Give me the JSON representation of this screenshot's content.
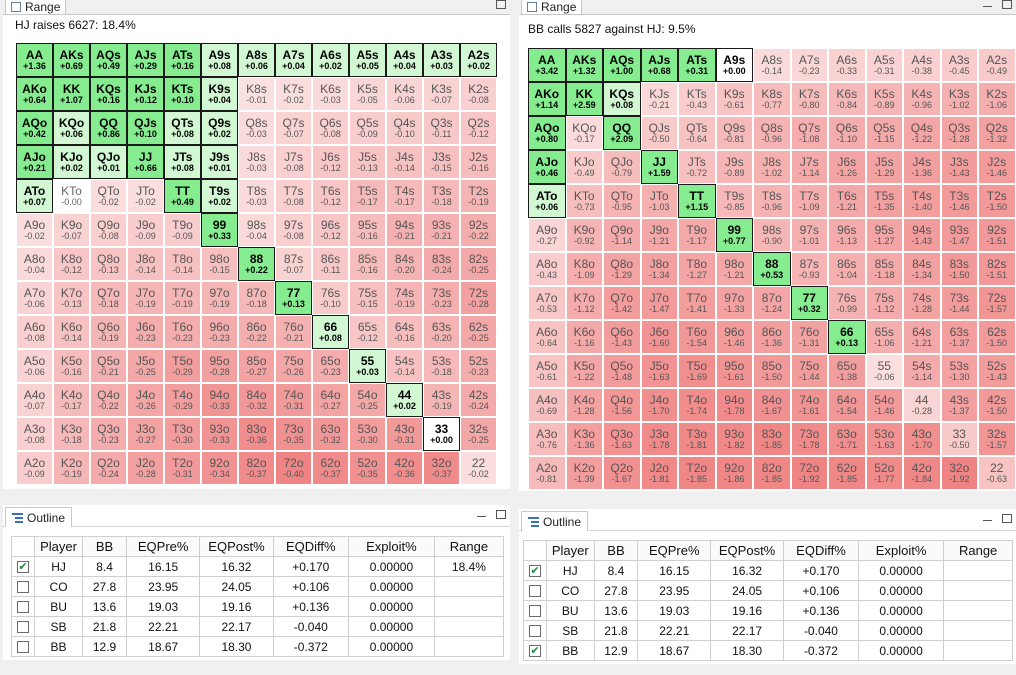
{
  "tab_labels": {
    "range": "Range",
    "outline": "Outline"
  },
  "left": {
    "caption": "HJ raises 6627: 18.4%",
    "cells": [
      [
        "AA",
        "+1.36"
      ],
      [
        "AKs",
        "+0.69"
      ],
      [
        "AQs",
        "+0.49"
      ],
      [
        "AJs",
        "+0.29"
      ],
      [
        "ATs",
        "+0.16"
      ],
      [
        "A9s",
        "+0.08"
      ],
      [
        "A8s",
        "+0.06"
      ],
      [
        "A7s",
        "+0.04"
      ],
      [
        "A6s",
        "+0.02"
      ],
      [
        "A5s",
        "+0.05"
      ],
      [
        "A4s",
        "+0.04"
      ],
      [
        "A3s",
        "+0.03"
      ],
      [
        "A2s",
        "+0.02"
      ],
      [
        "AKo",
        "+0.64"
      ],
      [
        "KK",
        "+1.07"
      ],
      [
        "KQs",
        "+0.16"
      ],
      [
        "KJs",
        "+0.12"
      ],
      [
        "KTs",
        "+0.10"
      ],
      [
        "K9s",
        "+0.04"
      ],
      [
        "K8s",
        "-0.01"
      ],
      [
        "K7s",
        "-0.02"
      ],
      [
        "K6s",
        "-0.03"
      ],
      [
        "K5s",
        "-0.05"
      ],
      [
        "K4s",
        "-0.06"
      ],
      [
        "K3s",
        "-0.07"
      ],
      [
        "K2s",
        "-0.08"
      ],
      [
        "AQo",
        "+0.42"
      ],
      [
        "KQo",
        "+0.06"
      ],
      [
        "QQ",
        "+0.86"
      ],
      [
        "QJs",
        "+0.10"
      ],
      [
        "QTs",
        "+0.08"
      ],
      [
        "Q9s",
        "+0.02"
      ],
      [
        "Q8s",
        "-0.03"
      ],
      [
        "Q7s",
        "-0.07"
      ],
      [
        "Q6s",
        "-0.08"
      ],
      [
        "Q5s",
        "-0.09"
      ],
      [
        "Q4s",
        "-0.10"
      ],
      [
        "Q3s",
        "-0.11"
      ],
      [
        "Q2s",
        "-0.12"
      ],
      [
        "AJo",
        "+0.21"
      ],
      [
        "KJo",
        "+0.02"
      ],
      [
        "QJo",
        "+0.01"
      ],
      [
        "JJ",
        "+0.66"
      ],
      [
        "JTs",
        "+0.08"
      ],
      [
        "J9s",
        "+0.01"
      ],
      [
        "J8s",
        "-0.03"
      ],
      [
        "J7s",
        "-0.08"
      ],
      [
        "J6s",
        "-0.12"
      ],
      [
        "J5s",
        "-0.13"
      ],
      [
        "J4s",
        "-0.14"
      ],
      [
        "J3s",
        "-0.15"
      ],
      [
        "J2s",
        "-0.16"
      ],
      [
        "ATo",
        "+0.07"
      ],
      [
        "KTo",
        "-0.00"
      ],
      [
        "QTo",
        "-0.02"
      ],
      [
        "JTo",
        "-0.02"
      ],
      [
        "TT",
        "+0.49"
      ],
      [
        "T9s",
        "+0.02"
      ],
      [
        "T8s",
        "-0.03"
      ],
      [
        "T7s",
        "-0.08"
      ],
      [
        "T6s",
        "-0.12"
      ],
      [
        "T5s",
        "-0.17"
      ],
      [
        "T4s",
        "-0.17"
      ],
      [
        "T3s",
        "-0.18"
      ],
      [
        "T2s",
        "-0.19"
      ],
      [
        "A9o",
        "-0.02"
      ],
      [
        "K9o",
        "-0.07"
      ],
      [
        "Q9o",
        "-0.08"
      ],
      [
        "J9o",
        "-0.09"
      ],
      [
        "T9o",
        "-0.09"
      ],
      [
        "99",
        "+0.33"
      ],
      [
        "98s",
        "-0.04"
      ],
      [
        "97s",
        "-0.08"
      ],
      [
        "96s",
        "-0.12"
      ],
      [
        "95s",
        "-0.16"
      ],
      [
        "94s",
        "-0.21"
      ],
      [
        "93s",
        "-0.21"
      ],
      [
        "92s",
        "-0.22"
      ],
      [
        "A8o",
        "-0.04"
      ],
      [
        "K8o",
        "-0.12"
      ],
      [
        "Q8o",
        "-0.13"
      ],
      [
        "J8o",
        "-0.14"
      ],
      [
        "T8o",
        "-0.14"
      ],
      [
        "98o",
        "-0.15"
      ],
      [
        "88",
        "+0.22"
      ],
      [
        "87s",
        "-0.07"
      ],
      [
        "86s",
        "-0.11"
      ],
      [
        "85s",
        "-0.16"
      ],
      [
        "84s",
        "-0.20"
      ],
      [
        "83s",
        "-0.24"
      ],
      [
        "82s",
        "-0.25"
      ],
      [
        "A7o",
        "-0.06"
      ],
      [
        "K7o",
        "-0.13"
      ],
      [
        "Q7o",
        "-0.18"
      ],
      [
        "J7o",
        "-0.19"
      ],
      [
        "T7o",
        "-0.19"
      ],
      [
        "97o",
        "-0.19"
      ],
      [
        "87o",
        "-0.18"
      ],
      [
        "77",
        "+0.13"
      ],
      [
        "76s",
        "-0.10"
      ],
      [
        "75s",
        "-0.15"
      ],
      [
        "74s",
        "-0.19"
      ],
      [
        "73s",
        "-0.23"
      ],
      [
        "72s",
        "-0.28"
      ],
      [
        "A6o",
        "-0.08"
      ],
      [
        "K6o",
        "-0.14"
      ],
      [
        "Q6o",
        "-0.19"
      ],
      [
        "J6o",
        "-0.23"
      ],
      [
        "T6o",
        "-0.23"
      ],
      [
        "96o",
        "-0.23"
      ],
      [
        "86o",
        "-0.22"
      ],
      [
        "76o",
        "-0.21"
      ],
      [
        "66",
        "+0.08"
      ],
      [
        "65s",
        "-0.12"
      ],
      [
        "64s",
        "-0.16"
      ],
      [
        "63s",
        "-0.20"
      ],
      [
        "62s",
        "-0.25"
      ],
      [
        "A5o",
        "-0.06"
      ],
      [
        "K5o",
        "-0.16"
      ],
      [
        "Q5o",
        "-0.21"
      ],
      [
        "J5o",
        "-0.25"
      ],
      [
        "T5o",
        "-0.29"
      ],
      [
        "95o",
        "-0.28"
      ],
      [
        "85o",
        "-0.27"
      ],
      [
        "75o",
        "-0.26"
      ],
      [
        "65o",
        "-0.23"
      ],
      [
        "55",
        "+0.03"
      ],
      [
        "54s",
        "-0.14"
      ],
      [
        "53s",
        "-0.18"
      ],
      [
        "52s",
        "-0.23"
      ],
      [
        "A4o",
        "-0.07"
      ],
      [
        "K4o",
        "-0.17"
      ],
      [
        "Q4o",
        "-0.22"
      ],
      [
        "J4o",
        "-0.26"
      ],
      [
        "T4o",
        "-0.29"
      ],
      [
        "94o",
        "-0.33"
      ],
      [
        "84o",
        "-0.32"
      ],
      [
        "74o",
        "-0.31"
      ],
      [
        "64o",
        "-0.27"
      ],
      [
        "54o",
        "-0.25"
      ],
      [
        "44",
        "+0.02"
      ],
      [
        "43s",
        "-0.19"
      ],
      [
        "42s",
        "-0.24"
      ],
      [
        "A3o",
        "-0.08"
      ],
      [
        "K3o",
        "-0.18"
      ],
      [
        "Q3o",
        "-0.23"
      ],
      [
        "J3o",
        "-0.27"
      ],
      [
        "T3o",
        "-0.30"
      ],
      [
        "93o",
        "-0.33"
      ],
      [
        "83o",
        "-0.36"
      ],
      [
        "73o",
        "-0.35"
      ],
      [
        "63o",
        "-0.32"
      ],
      [
        "53o",
        "-0.30"
      ],
      [
        "43o",
        "-0.31"
      ],
      [
        "33",
        "+0.00"
      ],
      [
        "32s",
        "-0.25"
      ],
      [
        "A2o",
        "-0.09"
      ],
      [
        "K2o",
        "-0.19"
      ],
      [
        "Q2o",
        "-0.24"
      ],
      [
        "J2o",
        "-0.28"
      ],
      [
        "T2o",
        "-0.31"
      ],
      [
        "92o",
        "-0.34"
      ],
      [
        "82o",
        "-0.37"
      ],
      [
        "72o",
        "-0.40"
      ],
      [
        "62o",
        "-0.37"
      ],
      [
        "52o",
        "-0.35"
      ],
      [
        "42o",
        "-0.36"
      ],
      [
        "32o",
        "-0.37"
      ],
      [
        "22",
        "-0.02"
      ]
    ]
  },
  "right": {
    "caption": "BB calls 5827 against HJ: 9.5%",
    "cells": [
      [
        "AA",
        "+3.42"
      ],
      [
        "AKs",
        "+1.32"
      ],
      [
        "AQs",
        "+1.00"
      ],
      [
        "AJs",
        "+0.68"
      ],
      [
        "ATs",
        "+0.31"
      ],
      [
        "A9s",
        "+0.00"
      ],
      [
        "A8s",
        "-0.14"
      ],
      [
        "A7s",
        "-0.23"
      ],
      [
        "A6s",
        "-0.33"
      ],
      [
        "A5s",
        "-0.31"
      ],
      [
        "A4s",
        "-0.38"
      ],
      [
        "A3s",
        "-0.45"
      ],
      [
        "A2s",
        "-0.49"
      ],
      [
        "AKo",
        "+1.14"
      ],
      [
        "KK",
        "+2.59"
      ],
      [
        "KQs",
        "+0.08"
      ],
      [
        "KJs",
        "-0.21"
      ],
      [
        "KTs",
        "-0.43"
      ],
      [
        "K9s",
        "-0.61"
      ],
      [
        "K8s",
        "-0.77"
      ],
      [
        "K7s",
        "-0.80"
      ],
      [
        "K6s",
        "-0.84"
      ],
      [
        "K5s",
        "-0.89"
      ],
      [
        "K4s",
        "-0.96"
      ],
      [
        "K3s",
        "-1.02"
      ],
      [
        "K2s",
        "-1.06"
      ],
      [
        "AQo",
        "+0.80"
      ],
      [
        "KQo",
        "-0.17"
      ],
      [
        "QQ",
        "+2.09"
      ],
      [
        "QJs",
        "-0.50"
      ],
      [
        "QTs",
        "-0.64"
      ],
      [
        "Q9s",
        "-0.81"
      ],
      [
        "Q8s",
        "-0.96"
      ],
      [
        "Q7s",
        "-1.08"
      ],
      [
        "Q6s",
        "-1.10"
      ],
      [
        "Q5s",
        "-1.15"
      ],
      [
        "Q4s",
        "-1.22"
      ],
      [
        "Q3s",
        "-1.28"
      ],
      [
        "Q2s",
        "-1.32"
      ],
      [
        "AJo",
        "+0.46"
      ],
      [
        "KJo",
        "-0.49"
      ],
      [
        "QJo",
        "-0.79"
      ],
      [
        "JJ",
        "+1.59"
      ],
      [
        "JTs",
        "-0.72"
      ],
      [
        "J9s",
        "-0.89"
      ],
      [
        "J8s",
        "-1.02"
      ],
      [
        "J7s",
        "-1.14"
      ],
      [
        "J6s",
        "-1.26"
      ],
      [
        "J5s",
        "-1.29"
      ],
      [
        "J4s",
        "-1.36"
      ],
      [
        "J3s",
        "-1.43"
      ],
      [
        "J2s",
        "-1.46"
      ],
      [
        "ATo",
        "+0.06"
      ],
      [
        "KTo",
        "-0.73"
      ],
      [
        "QTo",
        "-0.95"
      ],
      [
        "JTo",
        "-1.03"
      ],
      [
        "TT",
        "+1.15"
      ],
      [
        "T9s",
        "-0.85"
      ],
      [
        "T8s",
        "-0.96"
      ],
      [
        "T7s",
        "-1.09"
      ],
      [
        "T6s",
        "-1.21"
      ],
      [
        "T5s",
        "-1.35"
      ],
      [
        "T4s",
        "-1.40"
      ],
      [
        "T3s",
        "-1.46"
      ],
      [
        "T2s",
        "-1.50"
      ],
      [
        "A9o",
        "-0.27"
      ],
      [
        "K9o",
        "-0.92"
      ],
      [
        "Q9o",
        "-1.14"
      ],
      [
        "J9o",
        "-1.21"
      ],
      [
        "T9o",
        "-1.17"
      ],
      [
        "99",
        "+0.77"
      ],
      [
        "98s",
        "-0.90"
      ],
      [
        "97s",
        "-1.01"
      ],
      [
        "96s",
        "-1.13"
      ],
      [
        "95s",
        "-1.27"
      ],
      [
        "94s",
        "-1.43"
      ],
      [
        "93s",
        "-1.47"
      ],
      [
        "92s",
        "-1.51"
      ],
      [
        "A8o",
        "-0.43"
      ],
      [
        "K8o",
        "-1.09"
      ],
      [
        "Q8o",
        "-1.29"
      ],
      [
        "J8o",
        "-1.34"
      ],
      [
        "T8o",
        "-1.27"
      ],
      [
        "98o",
        "-1.21"
      ],
      [
        "88",
        "+0.53"
      ],
      [
        "87s",
        "-0.93"
      ],
      [
        "86s",
        "-1.04"
      ],
      [
        "85s",
        "-1.18"
      ],
      [
        "84s",
        "-1.34"
      ],
      [
        "83s",
        "-1.50"
      ],
      [
        "82s",
        "-1.51"
      ],
      [
        "A7o",
        "-0.53"
      ],
      [
        "K7o",
        "-1.12"
      ],
      [
        "Q7o",
        "-1.42"
      ],
      [
        "J7o",
        "-1.47"
      ],
      [
        "T7o",
        "-1.41"
      ],
      [
        "97o",
        "-1.33"
      ],
      [
        "87o",
        "-1.24"
      ],
      [
        "77",
        "+0.32"
      ],
      [
        "76s",
        "-0.99"
      ],
      [
        "75s",
        "-1.12"
      ],
      [
        "74s",
        "-1.28"
      ],
      [
        "73s",
        "-1.44"
      ],
      [
        "72s",
        "-1.57"
      ],
      [
        "A6o",
        "-0.64"
      ],
      [
        "K6o",
        "-1.16"
      ],
      [
        "Q6o",
        "-1.43"
      ],
      [
        "J6o",
        "-1.60"
      ],
      [
        "T6o",
        "-1.54"
      ],
      [
        "96o",
        "-1.46"
      ],
      [
        "86o",
        "-1.36"
      ],
      [
        "76o",
        "-1.31"
      ],
      [
        "66",
        "+0.13"
      ],
      [
        "65s",
        "-1.06"
      ],
      [
        "64s",
        "-1.21"
      ],
      [
        "63s",
        "-1.37"
      ],
      [
        "62s",
        "-1.50"
      ],
      [
        "A5o",
        "-0.61"
      ],
      [
        "K5o",
        "-1.22"
      ],
      [
        "Q5o",
        "-1.48"
      ],
      [
        "J5o",
        "-1.63"
      ],
      [
        "T5o",
        "-1.69"
      ],
      [
        "95o",
        "-1.61"
      ],
      [
        "85o",
        "-1.50"
      ],
      [
        "75o",
        "-1.44"
      ],
      [
        "65o",
        "-1.38"
      ],
      [
        "55",
        "-0.06"
      ],
      [
        "54s",
        "-1.14"
      ],
      [
        "53s",
        "-1.30"
      ],
      [
        "52s",
        "-1.43"
      ],
      [
        "A4o",
        "-0.69"
      ],
      [
        "K4o",
        "-1.28"
      ],
      [
        "Q4o",
        "-1.56"
      ],
      [
        "J4o",
        "-1.70"
      ],
      [
        "T4o",
        "-1.74"
      ],
      [
        "94o",
        "-1.78"
      ],
      [
        "84o",
        "-1.67"
      ],
      [
        "74o",
        "-1.61"
      ],
      [
        "64o",
        "-1.54"
      ],
      [
        "54o",
        "-1.46"
      ],
      [
        "44",
        "-0.28"
      ],
      [
        "43s",
        "-1.37"
      ],
      [
        "42s",
        "-1.50"
      ],
      [
        "A3o",
        "-0.76"
      ],
      [
        "K3o",
        "-1.36"
      ],
      [
        "Q3o",
        "-1.63"
      ],
      [
        "J3o",
        "-1.78"
      ],
      [
        "T3o",
        "-1.81"
      ],
      [
        "93o",
        "-1.82"
      ],
      [
        "83o",
        "-1.85"
      ],
      [
        "73o",
        "-1.78"
      ],
      [
        "63o",
        "-1.71"
      ],
      [
        "53o",
        "-1.63"
      ],
      [
        "43o",
        "-1.70"
      ],
      [
        "33",
        "-0.50"
      ],
      [
        "32s",
        "-1.57"
      ],
      [
        "A2o",
        "-0.81"
      ],
      [
        "K2o",
        "-1.39"
      ],
      [
        "Q2o",
        "-1.67"
      ],
      [
        "J2o",
        "-1.81"
      ],
      [
        "T2o",
        "-1.85"
      ],
      [
        "92o",
        "-1.86"
      ],
      [
        "82o",
        "-1.85"
      ],
      [
        "72o",
        "-1.92"
      ],
      [
        "62o",
        "-1.85"
      ],
      [
        "52o",
        "-1.77"
      ],
      [
        "42o",
        "-1.84"
      ],
      [
        "32o",
        "-1.92"
      ],
      [
        "22",
        "-0.63"
      ]
    ]
  },
  "outline": {
    "headers": [
      "Player",
      "BB",
      "EQPre%",
      "EQPost%",
      "EQDiff%",
      "Exploit%",
      "Range"
    ],
    "left_rows": [
      {
        "checked": true,
        "player": "HJ",
        "bb": "8.4",
        "eqpre": "16.15",
        "eqpost": "16.32",
        "eqdiff": "+0.170",
        "exploit": "0.00000",
        "range": "18.4%"
      },
      {
        "checked": false,
        "player": "CO",
        "bb": "27.8",
        "eqpre": "23.95",
        "eqpost": "24.05",
        "eqdiff": "+0.106",
        "exploit": "0.00000",
        "range": ""
      },
      {
        "checked": false,
        "player": "BU",
        "bb": "13.6",
        "eqpre": "19.03",
        "eqpost": "19.16",
        "eqdiff": "+0.136",
        "exploit": "0.00000",
        "range": ""
      },
      {
        "checked": false,
        "player": "SB",
        "bb": "21.8",
        "eqpre": "22.21",
        "eqpost": "22.17",
        "eqdiff": "-0.040",
        "exploit": "0.00000",
        "range": ""
      },
      {
        "checked": false,
        "player": "BB",
        "bb": "12.9",
        "eqpre": "18.67",
        "eqpost": "18.30",
        "eqdiff": "-0.372",
        "exploit": "0.00000",
        "range": ""
      }
    ],
    "right_rows": [
      {
        "checked": true,
        "player": "HJ",
        "bb": "8.4",
        "eqpre": "16.15",
        "eqpost": "16.32",
        "eqdiff": "+0.170",
        "exploit": "0.00000",
        "range": ""
      },
      {
        "checked": false,
        "player": "CO",
        "bb": "27.8",
        "eqpre": "23.95",
        "eqpost": "24.05",
        "eqdiff": "+0.106",
        "exploit": "0.00000",
        "range": ""
      },
      {
        "checked": false,
        "player": "BU",
        "bb": "13.6",
        "eqpre": "19.03",
        "eqpost": "19.16",
        "eqdiff": "+0.136",
        "exploit": "0.00000",
        "range": ""
      },
      {
        "checked": false,
        "player": "SB",
        "bb": "21.8",
        "eqpre": "22.21",
        "eqpost": "22.17",
        "eqdiff": "-0.040",
        "exploit": "0.00000",
        "range": ""
      },
      {
        "checked": true,
        "player": "BB",
        "bb": "12.9",
        "eqpre": "18.67",
        "eqpost": "18.30",
        "eqdiff": "-0.372",
        "exploit": "0.00000",
        "range": ""
      }
    ]
  },
  "colors": {
    "play_strong": "#86ec90",
    "play_light": "#d2f7d3",
    "fold_light": "#fbe2e2",
    "fold_deep": "#f08484",
    "zero": "#ffffff",
    "check": "#1f8a3a"
  }
}
